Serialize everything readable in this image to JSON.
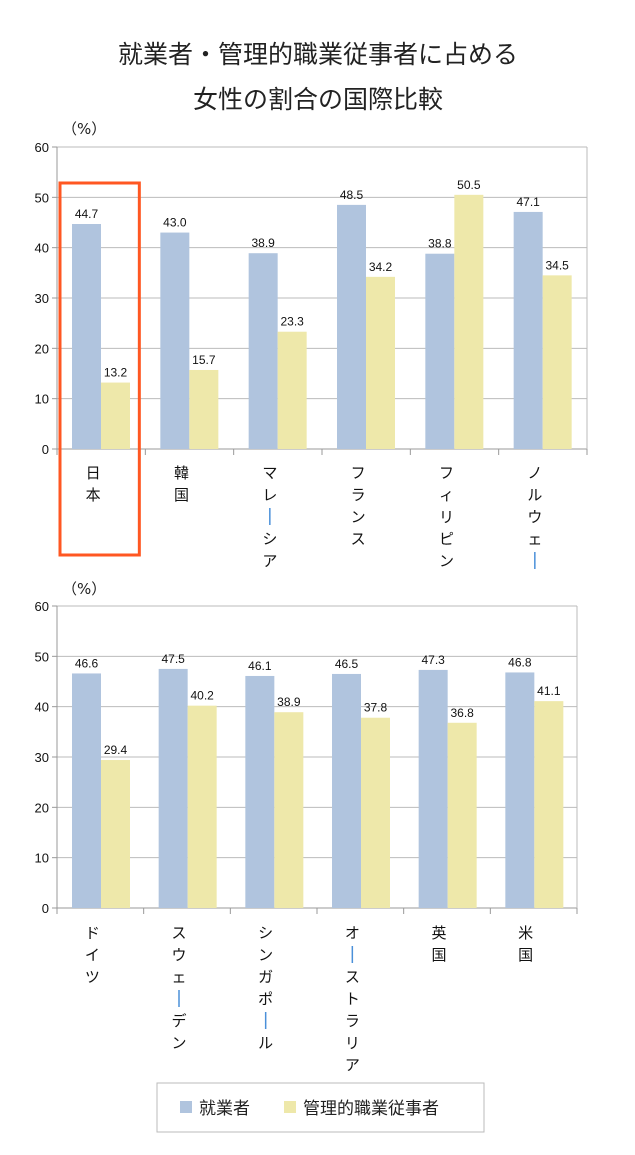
{
  "title": [
    "就業者・管理的職業従事者に占める",
    "女性の割合の国際比較"
  ],
  "colors": {
    "employed": "#b0c4de",
    "managers": "#eee8aa",
    "highlight": "#ff5722",
    "grid": "#bbbbbb"
  },
  "legend": {
    "position": "bottom",
    "items": [
      "就業者",
      "管理的職業従事者"
    ]
  },
  "chart_data": [
    {
      "type": "bar",
      "unit_label": "（%）",
      "ylim": [
        0,
        60
      ],
      "yticks": [
        0,
        10,
        20,
        30,
        40,
        50,
        60
      ],
      "grid": true,
      "categories": [
        "日本",
        "韓国",
        "マレーシア",
        "フランス",
        "フィリピン",
        "ノルウェー"
      ],
      "highlighted_category": "日本",
      "series": [
        {
          "name": "就業者",
          "values": [
            44.7,
            43.0,
            38.9,
            48.5,
            38.8,
            47.1
          ]
        },
        {
          "name": "管理的職業従事者",
          "values": [
            13.2,
            15.7,
            23.3,
            34.2,
            50.5,
            34.5
          ]
        }
      ]
    },
    {
      "type": "bar",
      "unit_label": "（%）",
      "ylim": [
        0,
        60
      ],
      "yticks": [
        0,
        10,
        20,
        30,
        40,
        50,
        60
      ],
      "grid": true,
      "categories": [
        "ドイツ",
        "スウェーデン",
        "シンガポール",
        "オーストラリア",
        "英国",
        "米国"
      ],
      "series": [
        {
          "name": "就業者",
          "values": [
            46.6,
            47.5,
            46.1,
            46.5,
            47.3,
            46.8
          ]
        },
        {
          "name": "管理的職業従事者",
          "values": [
            29.4,
            40.2,
            38.9,
            37.8,
            36.8,
            41.1
          ]
        }
      ]
    }
  ]
}
